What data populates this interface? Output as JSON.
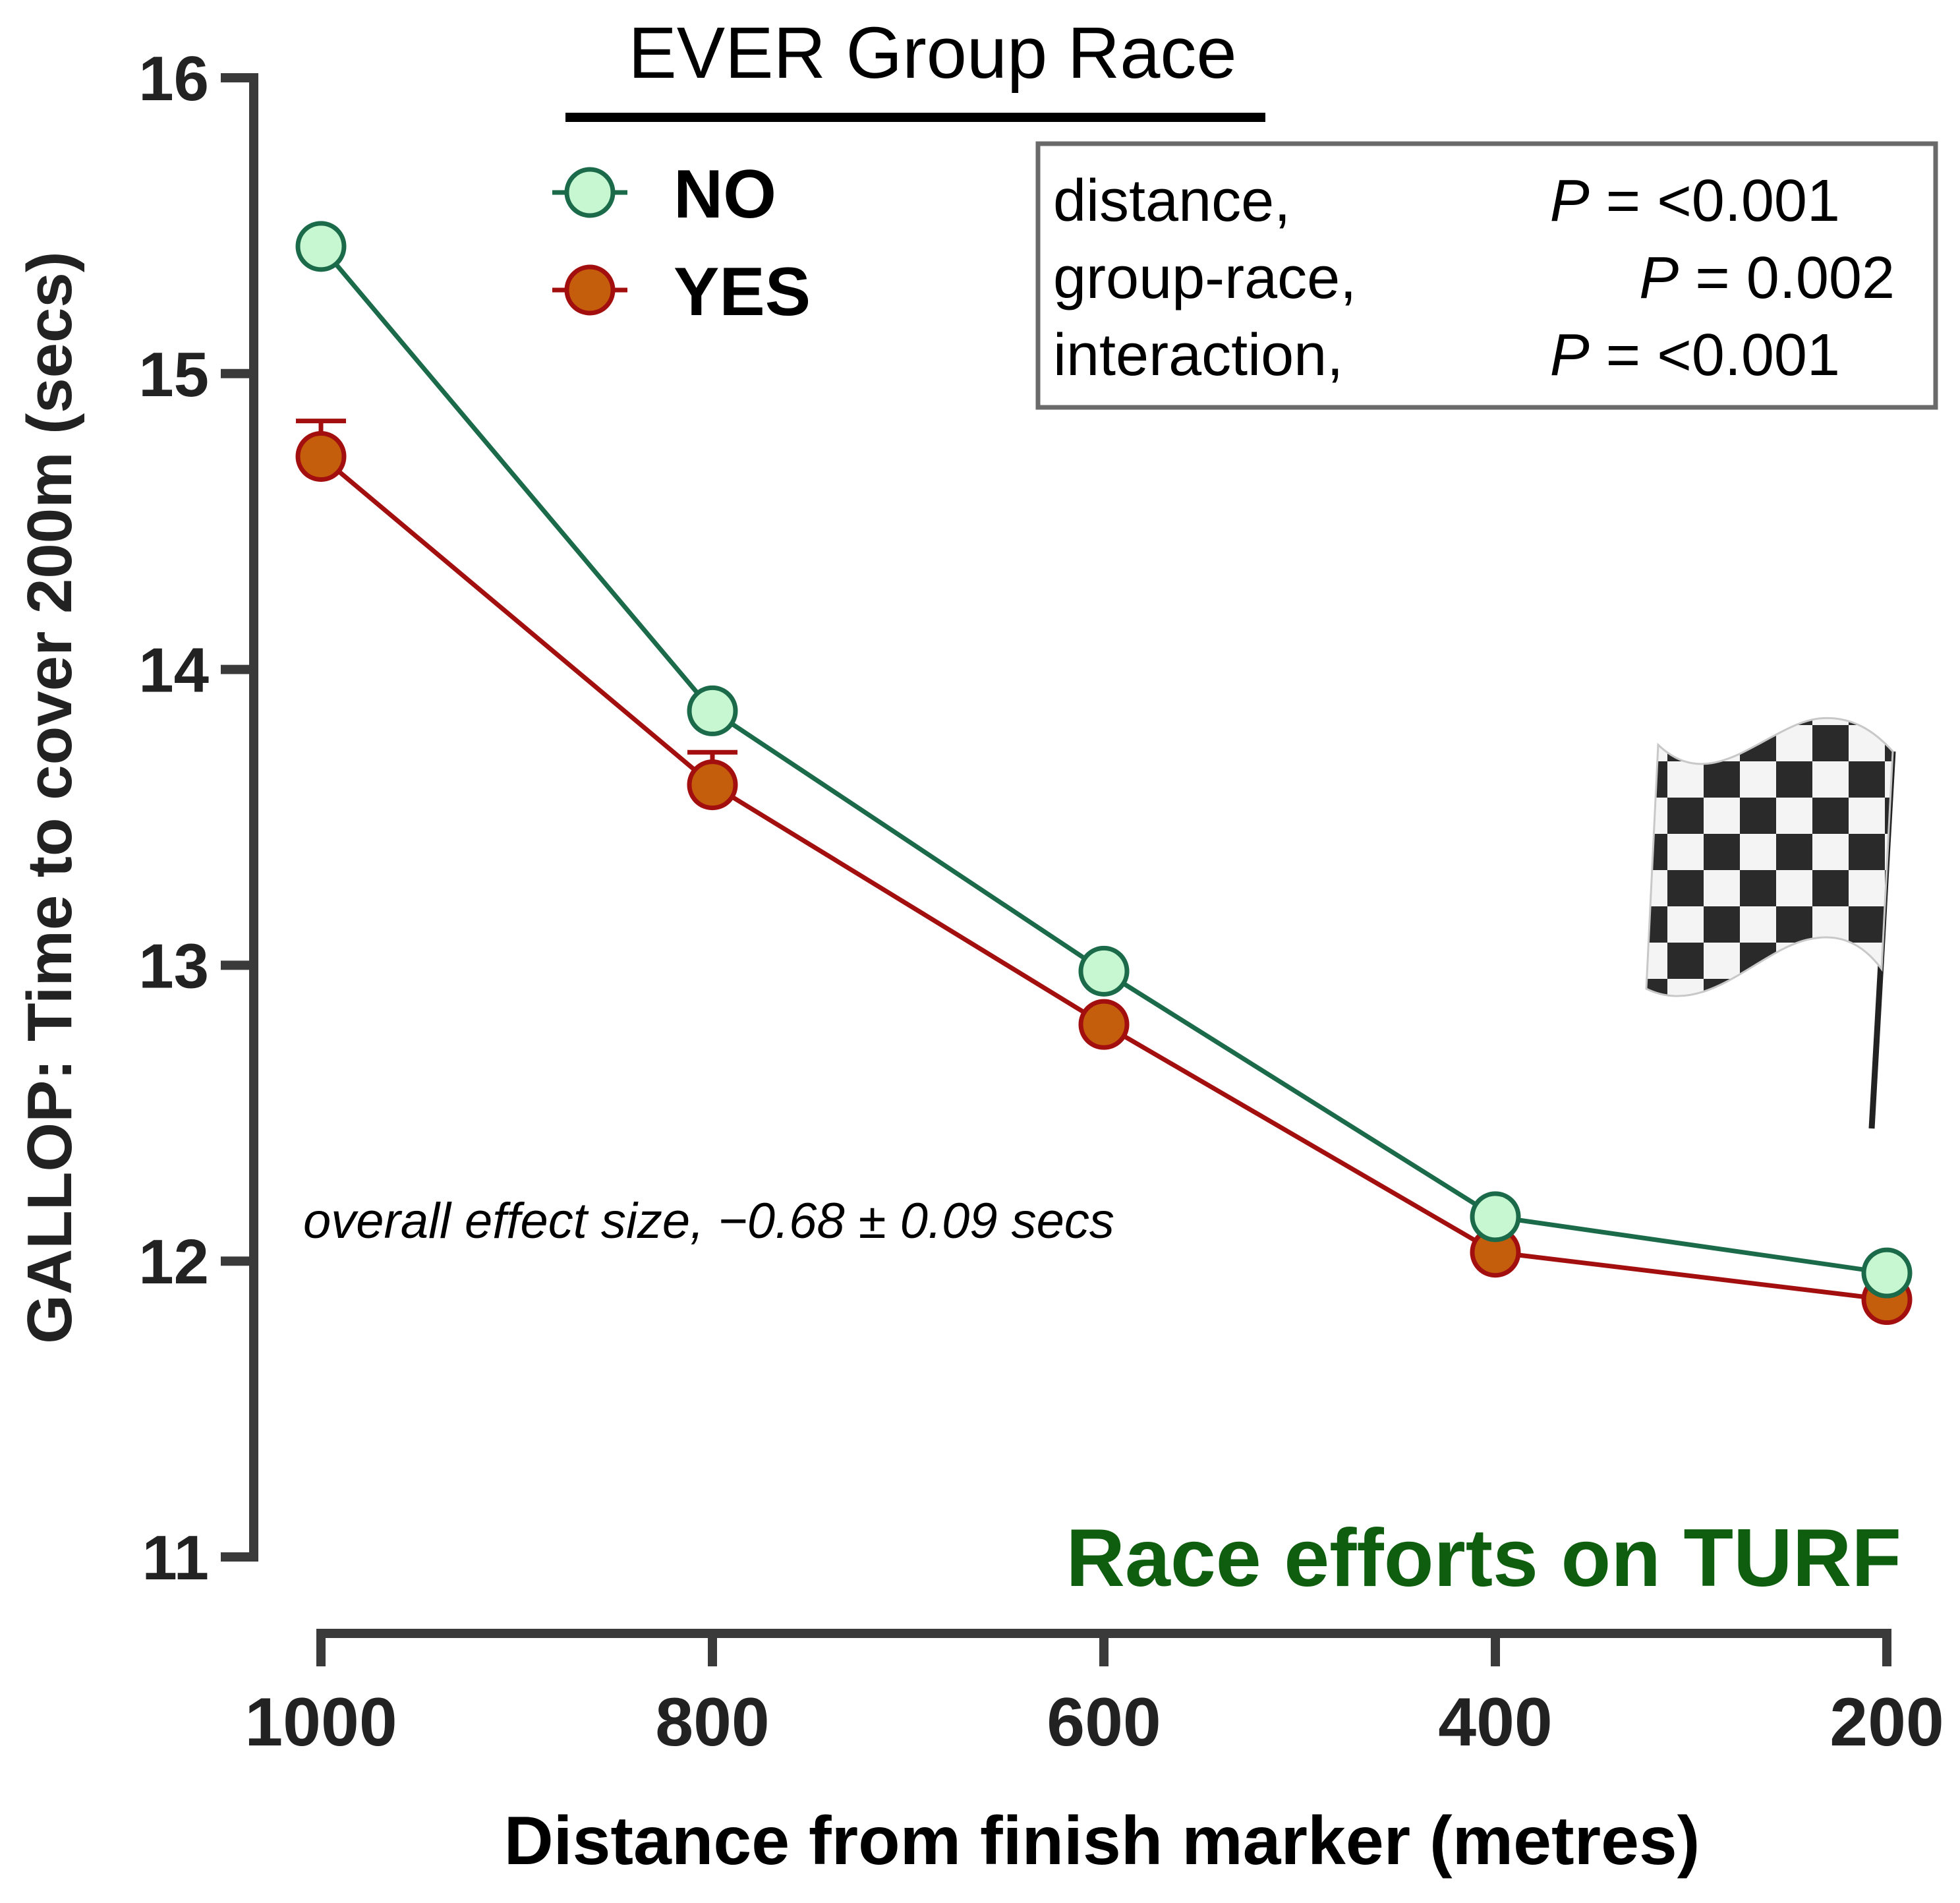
{
  "chart_data": {
    "type": "line",
    "title": "EVER Group Race",
    "subtitle": "Race efforts on TURF",
    "xlabel": "Distance from finish marker (metres)",
    "ylabel": "GALLOP: Time to cover 200m (secs)",
    "categories": [
      "1000",
      "800",
      "600",
      "400",
      "200"
    ],
    "ylim": [
      11,
      16
    ],
    "yticks": [
      "11",
      "12",
      "13",
      "14",
      "15",
      "16"
    ],
    "series": [
      {
        "name": "NO",
        "color": "#1b6b4a",
        "fill": "#c6f7d0",
        "values": [
          15.43,
          13.86,
          12.98,
          12.15,
          11.96
        ],
        "error": [
          0.0,
          0.0,
          0.0,
          0.0,
          0.0
        ]
      },
      {
        "name": "YES",
        "color": "#a30f0f",
        "fill": "#c45d0c",
        "values": [
          14.72,
          13.61,
          12.8,
          12.03,
          11.87
        ],
        "error": [
          0.12,
          0.11,
          0.0,
          0.0,
          0.0
        ]
      }
    ],
    "stats": [
      {
        "label": "distance,",
        "p": "P",
        "value": " = <0.001"
      },
      {
        "label": "group-race,",
        "p": "P",
        "value": " = 0.002"
      },
      {
        "label": "interaction,",
        "p": "P",
        "value": " = <0.001"
      }
    ],
    "annotation": "overall effect size, −0.68 ± 0.09 secs",
    "legend_position": "top-left"
  },
  "colors": {
    "axis": "#3a3a3a",
    "subtitle": "#0f5e0f"
  },
  "icons": {
    "flag": "checkered-flag-icon"
  }
}
